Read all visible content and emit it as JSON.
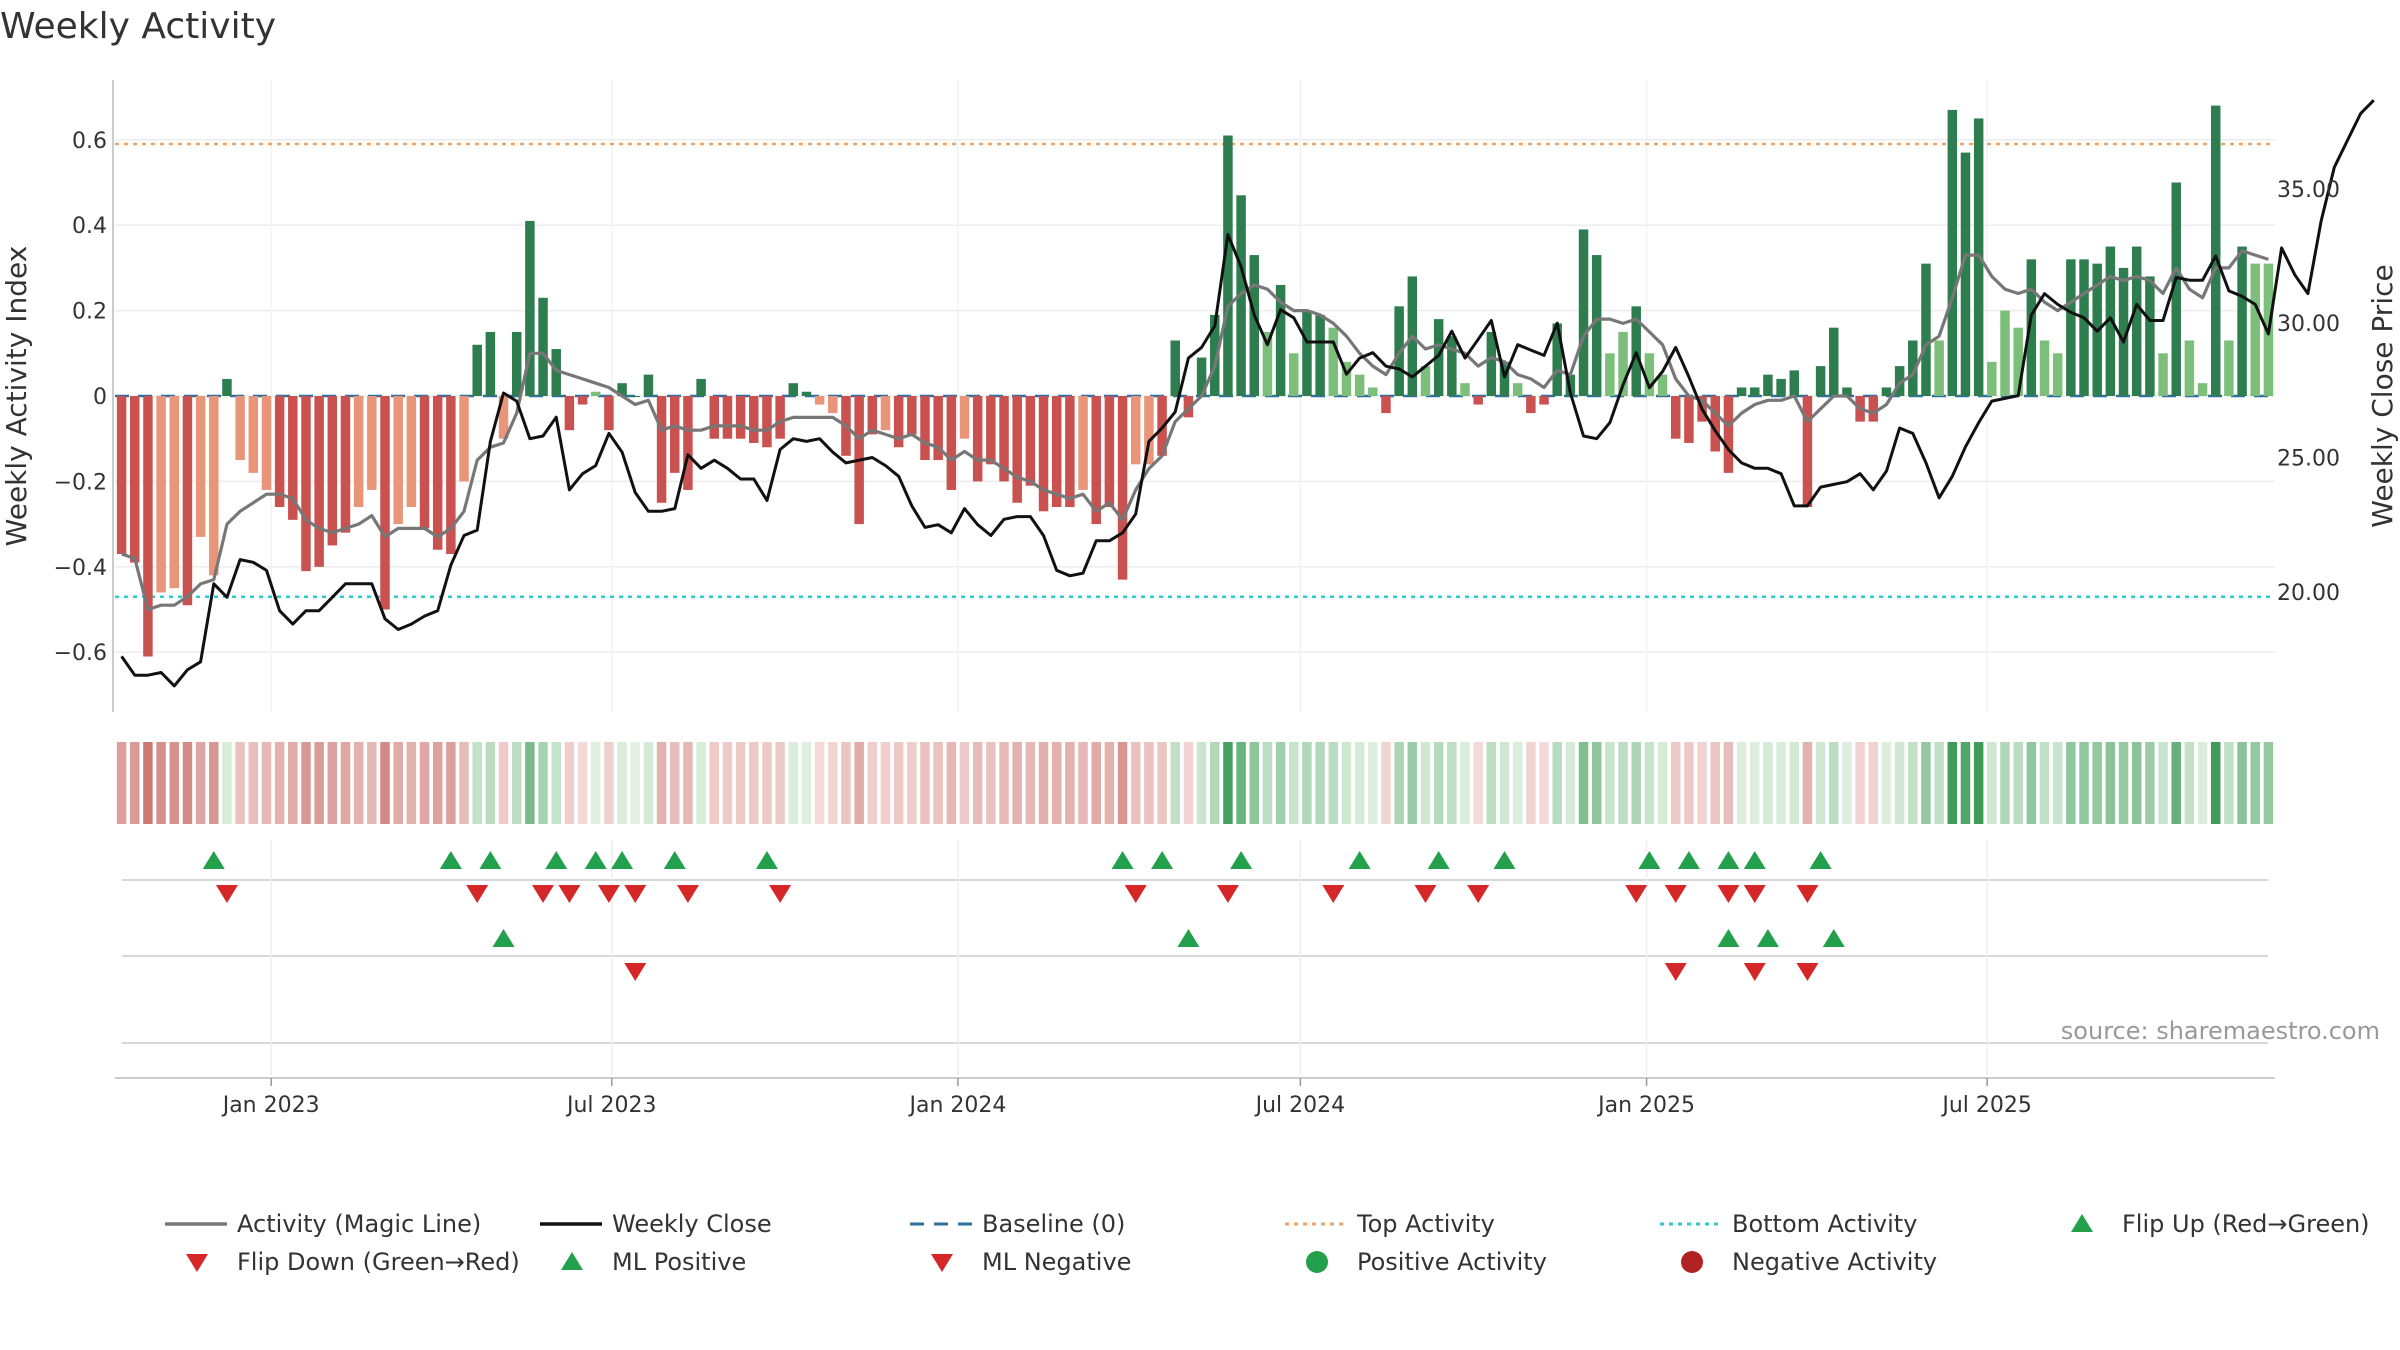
{
  "chart_data": {
    "type": "bar",
    "title": "Weekly Activity",
    "ylabel": "Weekly Activity Index",
    "y2label": "Weekly Close Price",
    "source": "source: sharemaestro.com",
    "ylim": [
      -0.74,
      0.74
    ],
    "y2lim": [
      15.53,
      39.05
    ],
    "yticks": [
      -0.6,
      -0.4,
      -0.2,
      0,
      0.2,
      0.4,
      0.6
    ],
    "yticks_labels": [
      "−0.6",
      "−0.4",
      "−0.2",
      "0",
      "0.2",
      "0.4",
      "0.6"
    ],
    "y2ticks": [
      20,
      25,
      30,
      35
    ],
    "y2ticks_labels": [
      "20.00",
      "25.00",
      "30.00",
      "35.00"
    ],
    "x_start": "2022-10-10",
    "xticks": [
      {
        "date": "2023-01-01",
        "label": "Jan 2023"
      },
      {
        "date": "2023-07-01",
        "label": "Jul 2023"
      },
      {
        "date": "2024-01-01",
        "label": "Jan 2024"
      },
      {
        "date": "2024-07-01",
        "label": "Jul 2024"
      },
      {
        "date": "2025-01-01",
        "label": "Jan 2025"
      },
      {
        "date": "2025-07-01",
        "label": "Jul 2025"
      }
    ],
    "top_activity": 0.59,
    "bottom_activity": -0.47,
    "activity": [
      -0.37,
      -0.39,
      -0.61,
      -0.46,
      -0.45,
      -0.49,
      -0.33,
      -0.42,
      0.04,
      -0.15,
      -0.18,
      -0.22,
      -0.26,
      -0.29,
      -0.41,
      -0.4,
      -0.35,
      -0.32,
      -0.26,
      -0.22,
      -0.5,
      -0.3,
      -0.26,
      -0.31,
      -0.36,
      -0.37,
      -0.2,
      0.12,
      0.15,
      -0.1,
      0.15,
      0.41,
      0.23,
      0.11,
      -0.08,
      -0.02,
      0.01,
      -0.08,
      0.03,
      0.0,
      0.05,
      -0.25,
      -0.18,
      -0.22,
      0.04,
      -0.1,
      -0.1,
      -0.1,
      -0.11,
      -0.12,
      -0.1,
      0.03,
      0.01,
      -0.02,
      -0.04,
      -0.14,
      -0.3,
      -0.09,
      -0.08,
      -0.12,
      -0.09,
      -0.15,
      -0.15,
      -0.22,
      -0.1,
      -0.2,
      -0.16,
      -0.2,
      -0.25,
      -0.21,
      -0.27,
      -0.26,
      -0.26,
      -0.22,
      -0.3,
      -0.26,
      -0.43,
      -0.16,
      -0.16,
      -0.14,
      0.13,
      -0.05,
      0.09,
      0.19,
      0.61,
      0.47,
      0.33,
      0.15,
      0.26,
      0.1,
      0.2,
      0.19,
      0.16,
      0.08,
      0.05,
      0.02,
      -0.04,
      0.21,
      0.28,
      0.07,
      0.18,
      0.14,
      0.03,
      -0.02,
      0.15,
      0.08,
      0.03,
      -0.04,
      -0.02,
      0.17,
      0.05,
      0.39,
      0.33,
      0.1,
      0.15,
      0.21,
      0.1,
      0.05,
      -0.1,
      -0.11,
      -0.06,
      -0.13,
      -0.18,
      0.02,
      0.02,
      0.05,
      0.04,
      0.06,
      -0.26,
      0.07,
      0.16,
      0.02,
      -0.06,
      -0.06,
      0.02,
      0.07,
      0.13,
      0.31,
      0.13,
      0.67,
      0.57,
      0.65,
      0.08,
      0.2,
      0.16,
      0.32,
      0.13,
      0.1,
      0.32,
      0.32,
      0.31,
      0.35,
      0.3,
      0.35,
      0.28,
      0.1,
      0.5,
      0.13,
      0.03,
      0.68,
      0.13,
      0.35,
      0.31,
      0.31
    ],
    "magic_line": [
      -0.37,
      -0.38,
      -0.5,
      -0.49,
      -0.49,
      -0.47,
      -0.44,
      -0.43,
      -0.3,
      -0.27,
      -0.25,
      -0.23,
      -0.23,
      -0.24,
      -0.29,
      -0.31,
      -0.32,
      -0.31,
      -0.3,
      -0.28,
      -0.33,
      -0.31,
      -0.31,
      -0.31,
      -0.33,
      -0.31,
      -0.27,
      -0.15,
      -0.12,
      -0.11,
      -0.04,
      0.1,
      0.1,
      0.06,
      0.05,
      0.04,
      0.03,
      0.02,
      0.0,
      -0.02,
      -0.01,
      -0.08,
      -0.07,
      -0.08,
      -0.08,
      -0.07,
      -0.07,
      -0.07,
      -0.08,
      -0.08,
      -0.06,
      -0.05,
      -0.05,
      -0.05,
      -0.05,
      -0.07,
      -0.1,
      -0.08,
      -0.09,
      -0.1,
      -0.09,
      -0.11,
      -0.12,
      -0.15,
      -0.13,
      -0.15,
      -0.15,
      -0.17,
      -0.19,
      -0.2,
      -0.22,
      -0.23,
      -0.24,
      -0.23,
      -0.27,
      -0.25,
      -0.29,
      -0.22,
      -0.17,
      -0.14,
      -0.06,
      -0.03,
      0.0,
      0.07,
      0.21,
      0.24,
      0.26,
      0.25,
      0.22,
      0.2,
      0.2,
      0.19,
      0.17,
      0.14,
      0.1,
      0.07,
      0.05,
      0.1,
      0.14,
      0.11,
      0.12,
      0.11,
      0.1,
      0.07,
      0.09,
      0.08,
      0.05,
      0.04,
      0.02,
      0.06,
      0.05,
      0.14,
      0.18,
      0.18,
      0.17,
      0.18,
      0.15,
      0.12,
      0.04,
      0.0,
      -0.01,
      -0.04,
      -0.07,
      -0.04,
      -0.02,
      -0.01,
      -0.01,
      0.0,
      -0.06,
      -0.03,
      0.0,
      0.0,
      -0.03,
      -0.04,
      -0.02,
      0.03,
      0.05,
      0.12,
      0.14,
      0.23,
      0.33,
      0.33,
      0.28,
      0.25,
      0.24,
      0.25,
      0.22,
      0.2,
      0.22,
      0.24,
      0.26,
      0.28,
      0.27,
      0.28,
      0.27,
      0.24,
      0.3,
      0.25,
      0.23,
      0.3,
      0.3,
      0.34,
      0.33,
      0.32
    ],
    "weekly_close": [
      17.6,
      16.9,
      16.9,
      17.0,
      16.5,
      17.1,
      17.4,
      20.3,
      19.8,
      21.2,
      21.1,
      20.8,
      19.3,
      18.8,
      19.3,
      19.3,
      19.8,
      20.3,
      20.3,
      20.3,
      19.0,
      18.6,
      18.8,
      19.1,
      19.3,
      21.0,
      22.1,
      22.3,
      25.6,
      27.4,
      27.1,
      25.7,
      25.8,
      26.5,
      23.8,
      24.4,
      24.7,
      25.9,
      25.2,
      23.7,
      23.0,
      23.0,
      23.1,
      25.1,
      24.6,
      24.9,
      24.6,
      24.2,
      24.2,
      23.4,
      25.3,
      25.7,
      25.6,
      25.7,
      25.2,
      24.8,
      24.9,
      25.0,
      24.7,
      24.3,
      23.2,
      22.4,
      22.5,
      22.2,
      23.1,
      22.5,
      22.1,
      22.7,
      22.8,
      22.8,
      22.1,
      20.8,
      20.6,
      20.7,
      21.9,
      21.9,
      22.2,
      22.9,
      25.6,
      26.1,
      26.7,
      28.7,
      29.1,
      29.9,
      33.3,
      32.1,
      30.3,
      29.2,
      30.5,
      30.2,
      29.3,
      29.3,
      29.3,
      28.1,
      28.7,
      28.9,
      28.4,
      28.3,
      28.0,
      28.4,
      28.8,
      29.7,
      28.7,
      29.4,
      30.1,
      28.0,
      29.2,
      29.0,
      28.8,
      30.0,
      27.4,
      25.8,
      25.7,
      26.3,
      27.7,
      28.9,
      27.6,
      28.2,
      29.1,
      28.0,
      26.8,
      26.0,
      25.3,
      24.8,
      24.6,
      24.6,
      24.4,
      23.2,
      23.2,
      23.9,
      24.0,
      24.1,
      24.4,
      23.8,
      24.5,
      26.1,
      25.9,
      24.8,
      23.5,
      24.3,
      25.4,
      26.3,
      27.1,
      27.2,
      27.3,
      30.3,
      31.1,
      30.7,
      30.4,
      30.2,
      29.7,
      30.2,
      29.3,
      30.7,
      30.1,
      30.1,
      31.7,
      31.6,
      31.6,
      32.5,
      31.2,
      31.0,
      30.7,
      29.6,
      32.8,
      31.8,
      31.1,
      33.8,
      35.8,
      36.8,
      37.8,
      38.3
    ],
    "flip_up_weeks": [
      7,
      25,
      28,
      33,
      36,
      38,
      42,
      49,
      76,
      79,
      85,
      94,
      100,
      105,
      116,
      119,
      122,
      124,
      129
    ],
    "flip_down_weeks": [
      8,
      27,
      32,
      34,
      37,
      39,
      43,
      50,
      77,
      84,
      92,
      99,
      103,
      115,
      118,
      122,
      124,
      128
    ],
    "ml_positive_weeks": [
      29,
      81,
      122,
      125,
      130
    ],
    "ml_negative_weeks": [
      39,
      118,
      124,
      128
    ],
    "legend": [
      {
        "label": "Activity (Magic Line)",
        "style": "line",
        "color": "#777777"
      },
      {
        "label": "Weekly Close",
        "style": "line",
        "color": "#111111"
      },
      {
        "label": "Baseline (0)",
        "style": "dash",
        "color": "#2f6f9f"
      },
      {
        "label": "Top Activity",
        "style": "dotted",
        "color": "#f4a261"
      },
      {
        "label": "Bottom Activity",
        "style": "dotted",
        "color": "#2ecbd0"
      },
      {
        "label": "Flip Up (Red→Green)",
        "style": "tri-up",
        "color": "#22a04b"
      },
      {
        "label": "Flip Down (Green→Red)",
        "style": "tri-down",
        "color": "#d62728"
      },
      {
        "label": "ML Positive",
        "style": "tri-up",
        "color": "#22a04b"
      },
      {
        "label": "ML Negative",
        "style": "tri-down",
        "color": "#d62728"
      },
      {
        "label": "Positive Activity",
        "style": "dot",
        "color": "#22a04b"
      },
      {
        "label": "Negative Activity",
        "style": "dot",
        "color": "#b22222"
      }
    ]
  }
}
